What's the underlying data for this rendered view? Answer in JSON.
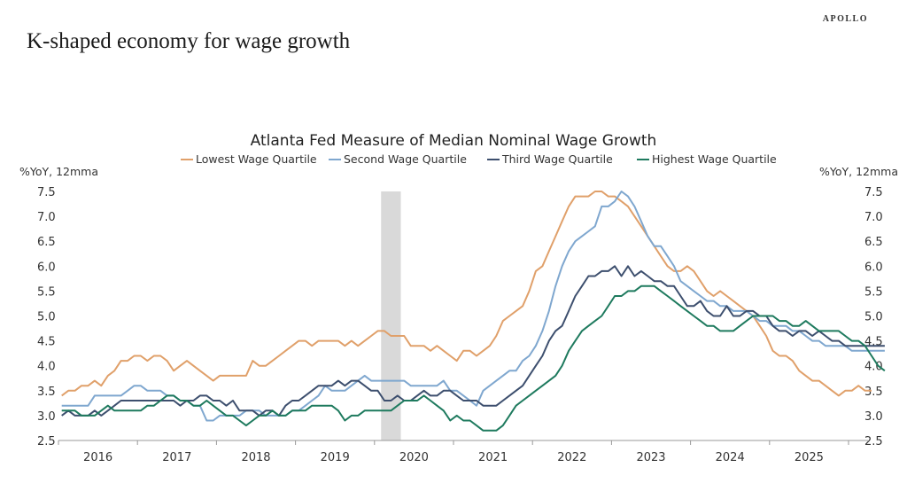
{
  "header": {
    "title": "K-shaped economy for wage growth",
    "brand": "APOLLO"
  },
  "chart_data": {
    "type": "line",
    "title": "Atlanta Fed Measure of Median Nominal Wage Growth",
    "ylabel_left": "%YoY, 12mma",
    "ylabel_right": "%YoY, 12mma",
    "ylim": [
      2.5,
      7.5
    ],
    "yticks": [
      "2.5",
      "3.0",
      "3.5",
      "4.0",
      "4.5",
      "5.0",
      "5.5",
      "6.0",
      "6.5",
      "7.0",
      "7.5"
    ],
    "xlabel": "",
    "x_start": "2016-01",
    "frequency": "monthly",
    "categories": [
      "2016",
      "2017",
      "2018",
      "2019",
      "2020",
      "2021",
      "2022",
      "2023",
      "2024",
      "2025"
    ],
    "legend_position": "top",
    "shaded_regions": [
      {
        "label": "recession",
        "start": "2020-02",
        "end": "2020-04",
        "color": "#d9d9d9"
      }
    ],
    "series": [
      {
        "name": "Lowest Wage Quartile",
        "color": "#e0a06a",
        "values": [
          3.4,
          3.5,
          3.5,
          3.6,
          3.6,
          3.7,
          3.6,
          3.8,
          3.9,
          4.1,
          4.1,
          4.2,
          4.2,
          4.1,
          4.2,
          4.2,
          4.1,
          3.9,
          4.0,
          4.1,
          4.0,
          3.9,
          3.8,
          3.7,
          3.8,
          3.8,
          3.8,
          3.8,
          3.8,
          4.1,
          4.0,
          4.0,
          4.1,
          4.2,
          4.3,
          4.4,
          4.5,
          4.5,
          4.4,
          4.5,
          4.5,
          4.5,
          4.5,
          4.4,
          4.5,
          4.4,
          4.5,
          4.6,
          4.7,
          4.7,
          4.6,
          4.6,
          4.6,
          4.4,
          4.4,
          4.4,
          4.3,
          4.4,
          4.3,
          4.2,
          4.1,
          4.3,
          4.3,
          4.2,
          4.3,
          4.4,
          4.6,
          4.9,
          5.0,
          5.1,
          5.2,
          5.5,
          5.9,
          6.0,
          6.3,
          6.6,
          6.9,
          7.2,
          7.4,
          7.4,
          7.4,
          7.5,
          7.5,
          7.4,
          7.4,
          7.3,
          7.2,
          7.0,
          6.8,
          6.6,
          6.4,
          6.2,
          6.0,
          5.9,
          5.9,
          6.0,
          5.9,
          5.7,
          5.5,
          5.4,
          5.5,
          5.4,
          5.3,
          5.2,
          5.1,
          5.0,
          4.8,
          4.6,
          4.3,
          4.2,
          4.2,
          4.1,
          3.9,
          3.8,
          3.7,
          3.7,
          3.6,
          3.5,
          3.4,
          3.5,
          3.5,
          3.6,
          3.5,
          3.5
        ]
      },
      {
        "name": "Second Wage Quartile",
        "color": "#7fa7cf",
        "values": [
          3.2,
          3.2,
          3.2,
          3.2,
          3.2,
          3.4,
          3.4,
          3.4,
          3.4,
          3.4,
          3.5,
          3.6,
          3.6,
          3.5,
          3.5,
          3.5,
          3.4,
          3.4,
          3.3,
          3.3,
          3.2,
          3.2,
          2.9,
          2.9,
          3.0,
          3.0,
          3.0,
          3.0,
          3.1,
          3.1,
          3.1,
          3.0,
          3.0,
          3.0,
          3.0,
          3.1,
          3.1,
          3.2,
          3.3,
          3.4,
          3.6,
          3.5,
          3.5,
          3.5,
          3.6,
          3.7,
          3.8,
          3.7,
          3.7,
          3.7,
          3.7,
          3.7,
          3.7,
          3.6,
          3.6,
          3.6,
          3.6,
          3.6,
          3.7,
          3.5,
          3.5,
          3.4,
          3.3,
          3.2,
          3.5,
          3.6,
          3.7,
          3.8,
          3.9,
          3.9,
          4.1,
          4.2,
          4.4,
          4.7,
          5.1,
          5.6,
          6.0,
          6.3,
          6.5,
          6.6,
          6.7,
          6.8,
          7.2,
          7.2,
          7.3,
          7.5,
          7.4,
          7.2,
          6.9,
          6.6,
          6.4,
          6.4,
          6.2,
          6.0,
          5.7,
          5.6,
          5.5,
          5.4,
          5.3,
          5.3,
          5.2,
          5.2,
          5.1,
          5.1,
          5.1,
          5.0,
          4.9,
          4.9,
          4.8,
          4.8,
          4.8,
          4.7,
          4.7,
          4.6,
          4.5,
          4.5,
          4.4,
          4.4,
          4.4,
          4.4,
          4.3,
          4.3,
          4.3,
          4.3,
          4.3,
          4.3
        ]
      },
      {
        "name": "Third Wage Quartile",
        "color": "#3d4f6e",
        "values": [
          3.0,
          3.1,
          3.0,
          3.0,
          3.0,
          3.1,
          3.0,
          3.1,
          3.2,
          3.3,
          3.3,
          3.3,
          3.3,
          3.3,
          3.3,
          3.3,
          3.3,
          3.3,
          3.2,
          3.3,
          3.3,
          3.4,
          3.4,
          3.3,
          3.3,
          3.2,
          3.3,
          3.1,
          3.1,
          3.1,
          3.0,
          3.1,
          3.1,
          3.0,
          3.2,
          3.3,
          3.3,
          3.4,
          3.5,
          3.6,
          3.6,
          3.6,
          3.7,
          3.6,
          3.7,
          3.7,
          3.6,
          3.5,
          3.5,
          3.3,
          3.3,
          3.4,
          3.3,
          3.3,
          3.4,
          3.5,
          3.4,
          3.4,
          3.5,
          3.5,
          3.4,
          3.3,
          3.3,
          3.3,
          3.2,
          3.2,
          3.2,
          3.3,
          3.4,
          3.5,
          3.6,
          3.8,
          4.0,
          4.2,
          4.5,
          4.7,
          4.8,
          5.1,
          5.4,
          5.6,
          5.8,
          5.8,
          5.9,
          5.9,
          6.0,
          5.8,
          6.0,
          5.8,
          5.9,
          5.8,
          5.7,
          5.7,
          5.6,
          5.6,
          5.4,
          5.2,
          5.2,
          5.3,
          5.1,
          5.0,
          5.0,
          5.2,
          5.0,
          5.0,
          5.1,
          5.1,
          5.0,
          5.0,
          4.8,
          4.7,
          4.7,
          4.6,
          4.7,
          4.7,
          4.6,
          4.7,
          4.6,
          4.5,
          4.5,
          4.4,
          4.4,
          4.4,
          4.4,
          4.4,
          4.4,
          4.4
        ]
      },
      {
        "name": "Highest Wage Quartile",
        "color": "#1e7a5e",
        "values": [
          3.1,
          3.1,
          3.1,
          3.0,
          3.0,
          3.0,
          3.1,
          3.2,
          3.1,
          3.1,
          3.1,
          3.1,
          3.1,
          3.2,
          3.2,
          3.3,
          3.4,
          3.4,
          3.3,
          3.3,
          3.2,
          3.2,
          3.3,
          3.2,
          3.1,
          3.0,
          3.0,
          2.9,
          2.8,
          2.9,
          3.0,
          3.0,
          3.1,
          3.0,
          3.0,
          3.1,
          3.1,
          3.1,
          3.2,
          3.2,
          3.2,
          3.2,
          3.1,
          2.9,
          3.0,
          3.0,
          3.1,
          3.1,
          3.1,
          3.1,
          3.1,
          3.2,
          3.3,
          3.3,
          3.3,
          3.4,
          3.3,
          3.2,
          3.1,
          2.9,
          3.0,
          2.9,
          2.9,
          2.8,
          2.7,
          2.7,
          2.7,
          2.8,
          3.0,
          3.2,
          3.3,
          3.4,
          3.5,
          3.6,
          3.7,
          3.8,
          4.0,
          4.3,
          4.5,
          4.7,
          4.8,
          4.9,
          5.0,
          5.2,
          5.4,
          5.4,
          5.5,
          5.5,
          5.6,
          5.6,
          5.6,
          5.5,
          5.4,
          5.3,
          5.2,
          5.1,
          5.0,
          4.9,
          4.8,
          4.8,
          4.7,
          4.7,
          4.7,
          4.8,
          4.9,
          5.0,
          5.0,
          5.0,
          5.0,
          4.9,
          4.9,
          4.8,
          4.8,
          4.9,
          4.8,
          4.7,
          4.7,
          4.7,
          4.7,
          4.6,
          4.5,
          4.5,
          4.4,
          4.2,
          4.0,
          3.9
        ]
      }
    ]
  }
}
